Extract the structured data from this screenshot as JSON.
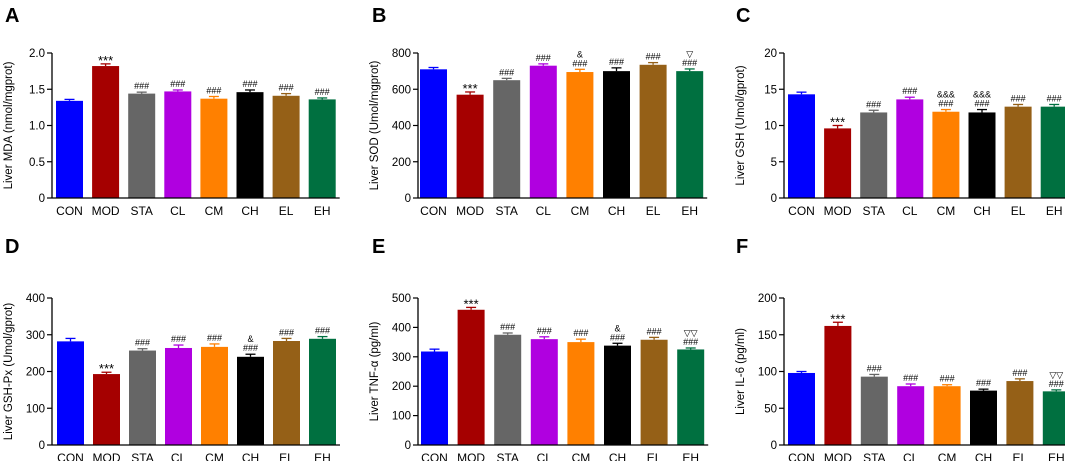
{
  "colors": [
    "#0000ff",
    "#a50000",
    "#666666",
    "#b000e0",
    "#ff8000",
    "#000000",
    "#956017",
    "#007040"
  ],
  "chart_data": [
    {
      "type": "bar",
      "panel": "A",
      "ylabel": "Liver MDA (nmol/mgprot)",
      "categories": [
        "CON",
        "MOD",
        "STA",
        "CL",
        "CM",
        "CH",
        "EL",
        "EH"
      ],
      "values": [
        1.34,
        1.82,
        1.44,
        1.47,
        1.37,
        1.46,
        1.41,
        1.36
      ],
      "errors": [
        0.02,
        0.03,
        0.02,
        0.02,
        0.03,
        0.03,
        0.03,
        0.02
      ],
      "ylim": [
        0,
        2.0
      ],
      "yticks": [
        "0",
        "0.5",
        "1.0",
        "1.5",
        "2.0"
      ],
      "annotations": [
        [],
        [
          "***"
        ],
        [
          "###"
        ],
        [
          "###"
        ],
        [
          "###"
        ],
        [
          "###"
        ],
        [
          "###"
        ],
        [
          "###"
        ]
      ]
    },
    {
      "type": "bar",
      "panel": "B",
      "ylabel": "Liver SOD (Umol/mgprot)",
      "categories": [
        "CON",
        "MOD",
        "STA",
        "CL",
        "CM",
        "CH",
        "EL",
        "EH"
      ],
      "values": [
        710,
        570,
        650,
        730,
        695,
        700,
        735,
        700
      ],
      "errors": [
        10,
        15,
        10,
        10,
        15,
        18,
        12,
        12
      ],
      "ylim": [
        0,
        800
      ],
      "yticks": [
        "0",
        "200",
        "400",
        "600",
        "800"
      ],
      "annotations": [
        [],
        [
          "***"
        ],
        [
          "###"
        ],
        [
          "###"
        ],
        [
          "&",
          "###"
        ],
        [
          "###"
        ],
        [
          "###"
        ],
        [
          "▽",
          "###"
        ]
      ]
    },
    {
      "type": "bar",
      "panel": "C",
      "ylabel": "Liver GSH (Umol/gprot)",
      "categories": [
        "CON",
        "MOD",
        "STA",
        "CL",
        "CM",
        "CH",
        "EL",
        "EH"
      ],
      "values": [
        14.3,
        9.6,
        11.8,
        13.6,
        11.9,
        11.8,
        12.6,
        12.6
      ],
      "errors": [
        0.3,
        0.4,
        0.3,
        0.3,
        0.3,
        0.4,
        0.3,
        0.3
      ],
      "ylim": [
        0,
        20
      ],
      "yticks": [
        "0",
        "5",
        "10",
        "15",
        "20"
      ],
      "annotations": [
        [],
        [
          "***"
        ],
        [
          "###"
        ],
        [
          "###"
        ],
        [
          "&&&",
          "###"
        ],
        [
          "&&&",
          "###"
        ],
        [
          "###"
        ],
        [
          "###"
        ]
      ]
    },
    {
      "type": "bar",
      "panel": "D",
      "ylabel": "Liver GSH-Px (Umol/gprot)",
      "categories": [
        "CON",
        "MOD",
        "STA",
        "CL",
        "CM",
        "CH",
        "EL",
        "EH"
      ],
      "values": [
        282,
        193,
        257,
        264,
        267,
        240,
        283,
        289
      ],
      "errors": [
        8,
        5,
        5,
        8,
        8,
        7,
        7,
        6
      ],
      "ylim": [
        0,
        400
      ],
      "yticks": [
        "0",
        "100",
        "200",
        "300",
        "400"
      ],
      "annotations": [
        [],
        [
          "***"
        ],
        [
          "###"
        ],
        [
          "###"
        ],
        [
          "###"
        ],
        [
          "&",
          "###"
        ],
        [
          "###"
        ],
        [
          "###"
        ]
      ]
    },
    {
      "type": "bar",
      "panel": "E",
      "ylabel": "Liver TNF-α (pg/ml)",
      "categories": [
        "CON",
        "MOD",
        "STA",
        "CL",
        "CM",
        "CH",
        "EL",
        "EH"
      ],
      "values": [
        318,
        460,
        375,
        360,
        350,
        338,
        358,
        325
      ],
      "errors": [
        8,
        8,
        6,
        8,
        10,
        8,
        8,
        5
      ],
      "ylim": [
        0,
        500
      ],
      "yticks": [
        "0",
        "100",
        "200",
        "300",
        "400",
        "500"
      ],
      "annotations": [
        [],
        [
          "***"
        ],
        [
          "###"
        ],
        [
          "###"
        ],
        [
          "###"
        ],
        [
          "&",
          "###"
        ],
        [
          "###"
        ],
        [
          "▽▽",
          "###"
        ]
      ]
    },
    {
      "type": "bar",
      "panel": "F",
      "ylabel": "Liver IL-6 (pg/ml)",
      "categories": [
        "CON",
        "MOD",
        "STA",
        "CL",
        "CM",
        "CH",
        "EL",
        "EH"
      ],
      "values": [
        98,
        162,
        93,
        80,
        80,
        74,
        87,
        73
      ],
      "errors": [
        2,
        5,
        3,
        3,
        2,
        2,
        3,
        2
      ],
      "ylim": [
        0,
        200
      ],
      "yticks": [
        "0",
        "50",
        "100",
        "150",
        "200"
      ],
      "annotations": [
        [],
        [
          "***"
        ],
        [
          "###"
        ],
        [
          "###"
        ],
        [
          "###"
        ],
        [
          "###"
        ],
        [
          "###"
        ],
        [
          "▽▽",
          "###"
        ]
      ]
    }
  ]
}
